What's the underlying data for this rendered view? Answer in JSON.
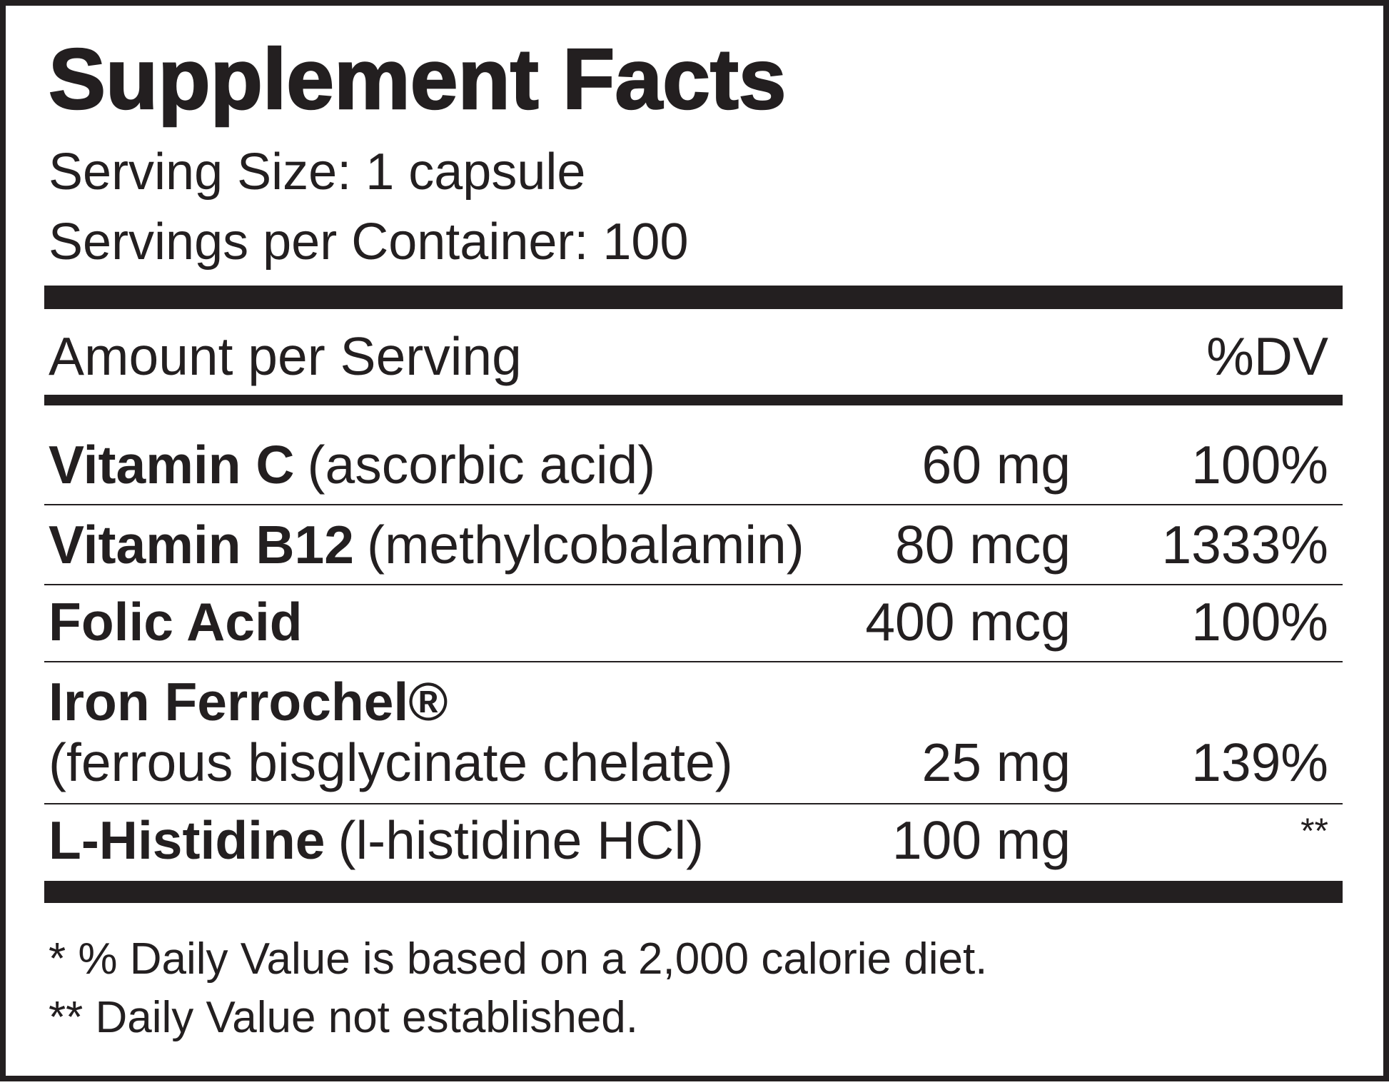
{
  "title": "Supplement Facts",
  "serving_size": "Serving Size: 1 capsule",
  "servings_per_container": "Servings per Container: 100",
  "header": {
    "amount": "Amount per Serving",
    "dv": "%DV"
  },
  "rows": [
    {
      "name": "Vitamin C",
      "description": "(ascorbic acid)",
      "amount": "60 mg",
      "dv": "100%"
    },
    {
      "name": "Vitamin B12",
      "description": "(methylcobalamin)",
      "amount": "80 mcg",
      "dv": "1333%"
    },
    {
      "name": "Folic Acid",
      "amount": "400 mcg",
      "dv": "100%"
    },
    {
      "name": "Iron Ferrochel®",
      "description": "(ferrous bisglycinate chelate)",
      "amount": "25 mg",
      "dv": "139%"
    },
    {
      "name": "L-Histidine",
      "description": "(l-histidine HCl)",
      "amount": "100 mg",
      "dv": "**"
    }
  ],
  "footnotes": [
    "* % Daily Value is based on a 2,000 calorie diet.",
    "** Daily Value not established."
  ]
}
